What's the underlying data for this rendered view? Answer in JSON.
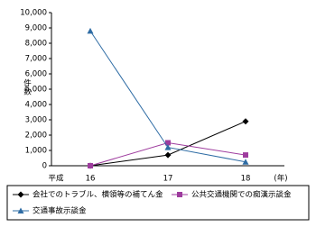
{
  "chart_data": {
    "type": "line",
    "y_label": "件数",
    "annotations": [
      "平成",
      "(年)"
    ],
    "categories": [
      "16",
      "17",
      "18"
    ],
    "series": [
      {
        "name": "会社でのトラブル、横領等の補てん金",
        "color": "#000000",
        "marker": "diamond",
        "values": [
          0,
          700,
          2900
        ]
      },
      {
        "name": "公共交通機関での痴漢示談金",
        "color": "#9e3c9e",
        "marker": "square",
        "values": [
          0,
          1500,
          700
        ]
      },
      {
        "name": "交通事故示談金",
        "color": "#2e6ca4",
        "marker": "triangle",
        "values": [
          8800,
          1200,
          250
        ]
      }
    ],
    "ylim": [
      0,
      10000
    ],
    "yticks": [
      0,
      {
        "value": 1000,
        "label": "1,000"
      },
      {
        "value": 2000,
        "label": "2,000"
      },
      {
        "value": 3000,
        "label": "3,000"
      },
      {
        "value": 4000,
        "label": "4,000"
      },
      {
        "value": 5000,
        "label": "5,000"
      },
      {
        "value": 6000,
        "label": "6,000"
      },
      {
        "value": 7000,
        "label": "7,000"
      },
      {
        "value": 8000,
        "label": "8,000"
      },
      {
        "value": 9000,
        "label": "9,000"
      },
      {
        "value": 10000,
        "label": "10,000"
      }
    ],
    "legend": "bottom"
  }
}
